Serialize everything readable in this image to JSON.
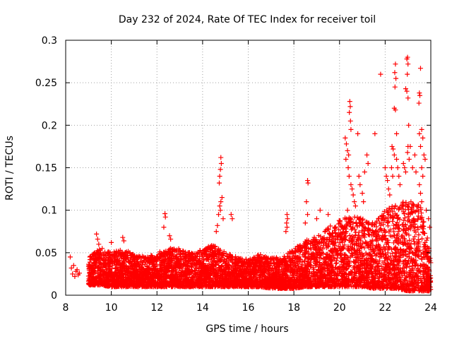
{
  "chart_data": {
    "type": "scatter",
    "title": "Day 232 of 2024, Rate Of TEC Index for receiver toil",
    "xlabel": "GPS time / hours",
    "ylabel": "ROTI / TECUs",
    "xlim": [
      8,
      24
    ],
    "ylim": [
      0,
      0.3
    ],
    "x_ticks": [
      8,
      10,
      12,
      14,
      16,
      18,
      20,
      22,
      24
    ],
    "x_tick_labels": [
      "8",
      "10",
      "12",
      "14",
      "16",
      "18",
      "20",
      "22",
      "24"
    ],
    "y_ticks": [
      0,
      0.05,
      0.1,
      0.15,
      0.2,
      0.25,
      0.3
    ],
    "y_tick_labels": [
      "0",
      "0.05",
      "0.1",
      "0.15",
      "0.2",
      "0.25",
      "0.3"
    ],
    "grid": true,
    "marker": "+",
    "marker_color": "#ff0000",
    "series": [
      {
        "name": "ROTI",
        "points": [
          [
            8.2,
            0.045
          ],
          [
            8.25,
            0.032
          ],
          [
            8.3,
            0.025
          ],
          [
            8.35,
            0.035
          ],
          [
            8.4,
            0.022
          ],
          [
            8.45,
            0.028
          ],
          [
            8.5,
            0.03
          ],
          [
            8.55,
            0.024
          ],
          [
            8.6,
            0.026
          ],
          [
            9.35,
            0.072
          ],
          [
            9.4,
            0.066
          ],
          [
            9.45,
            0.06
          ],
          [
            9.6,
            0.055
          ],
          [
            10.0,
            0.062
          ],
          [
            10.5,
            0.068
          ],
          [
            10.55,
            0.064
          ],
          [
            12.35,
            0.096
          ],
          [
            12.37,
            0.092
          ],
          [
            12.3,
            0.08
          ],
          [
            12.55,
            0.07
          ],
          [
            12.6,
            0.066
          ],
          [
            14.8,
            0.162
          ],
          [
            14.82,
            0.155
          ],
          [
            14.78,
            0.148
          ],
          [
            14.75,
            0.14
          ],
          [
            14.73,
            0.132
          ],
          [
            14.85,
            0.115
          ],
          [
            14.8,
            0.11
          ],
          [
            14.75,
            0.105
          ],
          [
            14.78,
            0.1
          ],
          [
            14.7,
            0.095
          ],
          [
            14.65,
            0.082
          ],
          [
            14.6,
            0.075
          ],
          [
            14.9,
            0.09
          ],
          [
            15.25,
            0.095
          ],
          [
            15.3,
            0.09
          ],
          [
            17.7,
            0.095
          ],
          [
            17.72,
            0.09
          ],
          [
            17.68,
            0.085
          ],
          [
            17.7,
            0.08
          ],
          [
            17.65,
            0.075
          ],
          [
            18.6,
            0.135
          ],
          [
            18.62,
            0.132
          ],
          [
            18.55,
            0.11
          ],
          [
            18.6,
            0.095
          ],
          [
            18.5,
            0.085
          ],
          [
            19.0,
            0.09
          ],
          [
            19.15,
            0.1
          ],
          [
            19.5,
            0.095
          ],
          [
            20.25,
            0.185
          ],
          [
            20.3,
            0.178
          ],
          [
            20.35,
            0.17
          ],
          [
            20.4,
            0.165
          ],
          [
            20.28,
            0.16
          ],
          [
            20.45,
            0.228
          ],
          [
            20.47,
            0.222
          ],
          [
            20.43,
            0.215
          ],
          [
            20.48,
            0.205
          ],
          [
            20.5,
            0.195
          ],
          [
            20.38,
            0.15
          ],
          [
            20.42,
            0.14
          ],
          [
            20.5,
            0.13
          ],
          [
            20.55,
            0.125
          ],
          [
            20.6,
            0.118
          ],
          [
            20.65,
            0.11
          ],
          [
            20.7,
            0.105
          ],
          [
            20.35,
            0.1
          ],
          [
            20.8,
            0.19
          ],
          [
            20.85,
            0.14
          ],
          [
            20.9,
            0.13
          ],
          [
            21.0,
            0.12
          ],
          [
            21.05,
            0.11
          ],
          [
            21.2,
            0.165
          ],
          [
            21.25,
            0.155
          ],
          [
            21.1,
            0.145
          ],
          [
            21.55,
            0.19
          ],
          [
            21.8,
            0.26
          ],
          [
            22.0,
            0.15
          ],
          [
            22.05,
            0.14
          ],
          [
            22.1,
            0.135
          ],
          [
            22.15,
            0.125
          ],
          [
            22.2,
            0.118
          ],
          [
            22.3,
            0.175
          ],
          [
            22.35,
            0.172
          ],
          [
            22.4,
            0.165
          ],
          [
            22.28,
            0.15
          ],
          [
            22.33,
            0.14
          ],
          [
            22.42,
            0.262
          ],
          [
            22.45,
            0.272
          ],
          [
            22.47,
            0.255
          ],
          [
            22.43,
            0.245
          ],
          [
            22.4,
            0.22
          ],
          [
            22.45,
            0.218
          ],
          [
            22.5,
            0.19
          ],
          [
            22.5,
            0.16
          ],
          [
            22.55,
            0.15
          ],
          [
            22.6,
            0.14
          ],
          [
            22.65,
            0.13
          ],
          [
            22.8,
            0.155
          ],
          [
            22.85,
            0.15
          ],
          [
            22.9,
            0.145
          ],
          [
            22.95,
            0.278
          ],
          [
            22.98,
            0.28
          ],
          [
            23.0,
            0.272
          ],
          [
            22.97,
            0.26
          ],
          [
            22.9,
            0.243
          ],
          [
            22.95,
            0.24
          ],
          [
            23.0,
            0.232
          ],
          [
            23.03,
            0.2
          ],
          [
            23.0,
            0.175
          ],
          [
            22.98,
            0.168
          ],
          [
            23.05,
            0.16
          ],
          [
            23.1,
            0.175
          ],
          [
            23.2,
            0.15
          ],
          [
            23.3,
            0.165
          ],
          [
            23.35,
            0.145
          ],
          [
            23.5,
            0.238
          ],
          [
            23.52,
            0.235
          ],
          [
            23.48,
            0.226
          ],
          [
            23.55,
            0.267
          ],
          [
            23.5,
            0.19
          ],
          [
            23.6,
            0.195
          ],
          [
            23.65,
            0.185
          ],
          [
            23.55,
            0.175
          ],
          [
            23.7,
            0.165
          ],
          [
            23.75,
            0.16
          ],
          [
            23.6,
            0.15
          ],
          [
            23.65,
            0.14
          ],
          [
            23.5,
            0.13
          ],
          [
            23.55,
            0.12
          ],
          [
            23.6,
            0.11
          ],
          [
            23.8,
            0.1
          ],
          [
            23.9,
            0.09
          ],
          [
            23.95,
            0.08
          ]
        ],
        "band": {
          "note": "dense dataset of many points; the bulk lies between the ranges below for each hour bin",
          "hour_bins": [
            [
              9,
              0.012,
              0.045
            ],
            [
              9.5,
              0.012,
              0.055
            ],
            [
              10,
              0.01,
              0.05
            ],
            [
              10.5,
              0.01,
              0.055
            ],
            [
              11,
              0.01,
              0.048
            ],
            [
              11.5,
              0.01,
              0.045
            ],
            [
              12,
              0.01,
              0.05
            ],
            [
              12.5,
              0.01,
              0.055
            ],
            [
              13,
              0.01,
              0.055
            ],
            [
              13.5,
              0.01,
              0.05
            ],
            [
              14,
              0.01,
              0.055
            ],
            [
              14.5,
              0.01,
              0.06
            ],
            [
              15,
              0.01,
              0.05
            ],
            [
              15.5,
              0.01,
              0.045
            ],
            [
              16,
              0.01,
              0.042
            ],
            [
              16.5,
              0.01,
              0.048
            ],
            [
              17,
              0.008,
              0.045
            ],
            [
              17.5,
              0.008,
              0.045
            ],
            [
              18,
              0.008,
              0.055
            ],
            [
              18.5,
              0.01,
              0.065
            ],
            [
              19,
              0.01,
              0.07
            ],
            [
              19.5,
              0.01,
              0.08
            ],
            [
              20,
              0.01,
              0.09
            ],
            [
              20.5,
              0.01,
              0.095
            ],
            [
              21,
              0.01,
              0.09
            ],
            [
              21.5,
              0.008,
              0.085
            ],
            [
              22,
              0.008,
              0.1
            ],
            [
              22.5,
              0.008,
              0.11
            ],
            [
              23,
              0.005,
              0.11
            ],
            [
              23.5,
              0.005,
              0.11
            ],
            [
              24,
              0.005,
              0.05
            ]
          ]
        }
      }
    ]
  }
}
